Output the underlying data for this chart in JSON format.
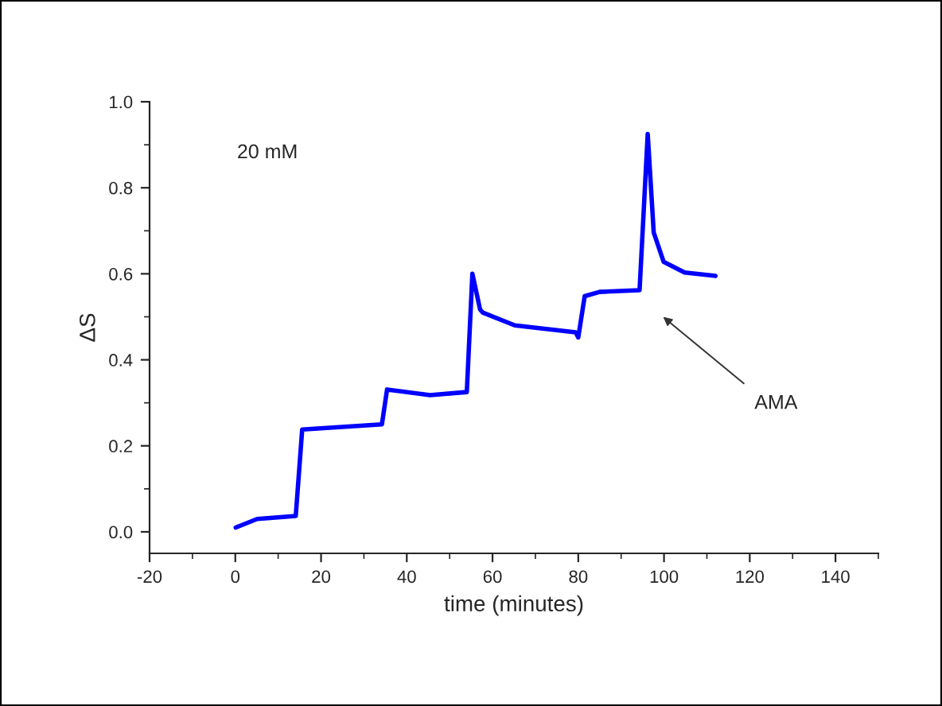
{
  "chart_data": {
    "type": "line",
    "xlabel": "time (minutes)",
    "ylabel": "ΔS",
    "annotations": [
      "20 mM",
      "AMA"
    ],
    "x": [
      0.1,
      5.1,
      14.1,
      15.6,
      34.2,
      35.4,
      45.4,
      54,
      55.3,
      57.1,
      57.7,
      65.2,
      79.4,
      80,
      81.5,
      85,
      94.3,
      96.2,
      97.6,
      99.9,
      104.8,
      112
    ],
    "series": [
      {
        "color": "#0000ff",
        "values": [
          0.01,
          0.03,
          0.037,
          0.238,
          0.25,
          0.331,
          0.318,
          0.325,
          0.6,
          0.517,
          0.51,
          0.48,
          0.464,
          0.452,
          0.548,
          0.558,
          0.562,
          0.925,
          0.696,
          0.628,
          0.603,
          0.595
        ]
      }
    ],
    "xlim": [
      -20,
      150
    ],
    "ylim": [
      -0.05,
      1.0
    ],
    "xticks": [
      -20,
      0,
      20,
      40,
      60,
      80,
      100,
      120,
      140
    ],
    "yticks": [
      {
        "value": 0,
        "label": "0.0"
      },
      {
        "value": 0.2,
        "label": "0.2"
      },
      {
        "value": 0.4,
        "label": "0.4"
      },
      {
        "value": 0.6,
        "label": "0.6"
      },
      {
        "value": 0.8,
        "label": "0.8"
      },
      {
        "value": 1.0,
        "label": "1.0"
      }
    ],
    "grid": false,
    "legend": false,
    "marker": "none",
    "line_style": "solid"
  }
}
